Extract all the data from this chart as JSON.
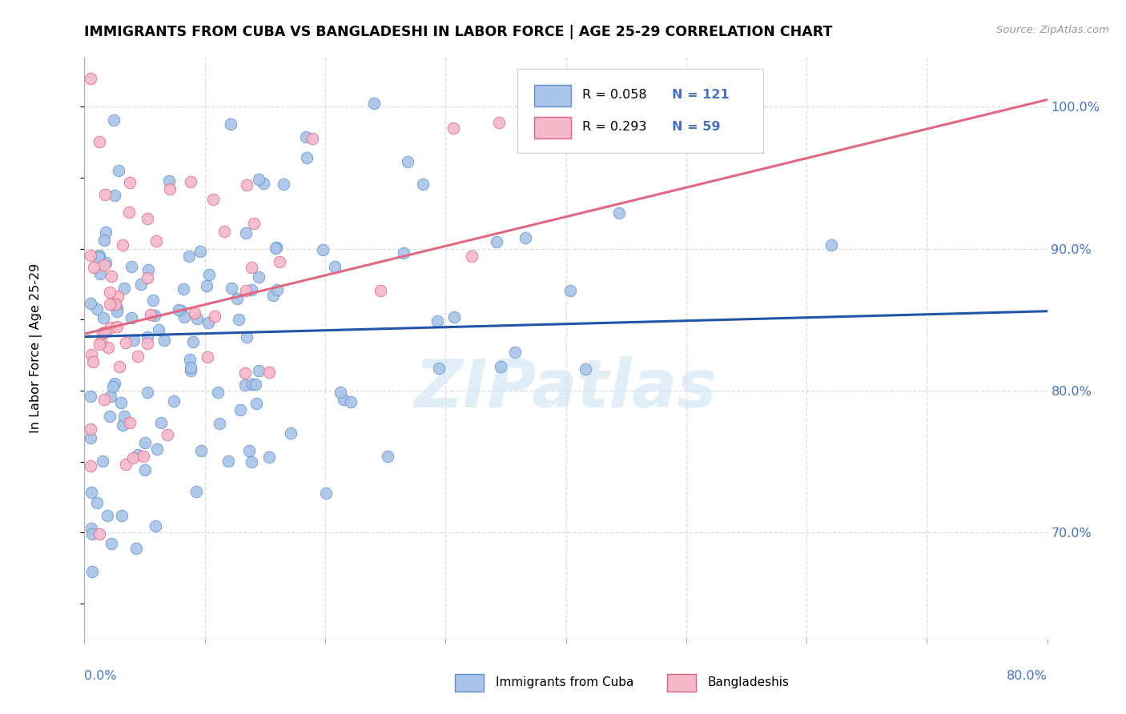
{
  "title": "IMMIGRANTS FROM CUBA VS BANGLADESHI IN LABOR FORCE | AGE 25-29 CORRELATION CHART",
  "source": "Source: ZipAtlas.com",
  "ylabel": "In Labor Force | Age 25-29",
  "yticks": [
    0.7,
    0.8,
    0.9,
    1.0
  ],
  "ytick_labels": [
    "70.0%",
    "80.0%",
    "90.0%",
    "100.0%"
  ],
  "xmin": 0.0,
  "xmax": 0.8,
  "ymin": 0.625,
  "ymax": 1.035,
  "legend_r1": "R = 0.058",
  "legend_n1": "N = 121",
  "legend_r2": "R = 0.293",
  "legend_n2": "N = 59",
  "color_cuba_fill": "#a8c4e8",
  "color_cuba_edge": "#6090c8",
  "color_bang_fill": "#f5b8c8",
  "color_bang_edge": "#e06080",
  "color_cuba_line": "#2255aa",
  "color_bang_line": "#e06880",
  "color_text_blue": "#4472c4",
  "color_right_axis": "#4472c4",
  "watermark_color": "#cce4f4",
  "watermark": "ZIPatlas",
  "grid_color": "#dddddd",
  "cuba_seed": 101,
  "bang_seed": 202,
  "cuba_n": 121,
  "bang_n": 59,
  "cuba_R": 0.058,
  "bang_R": 0.293
}
